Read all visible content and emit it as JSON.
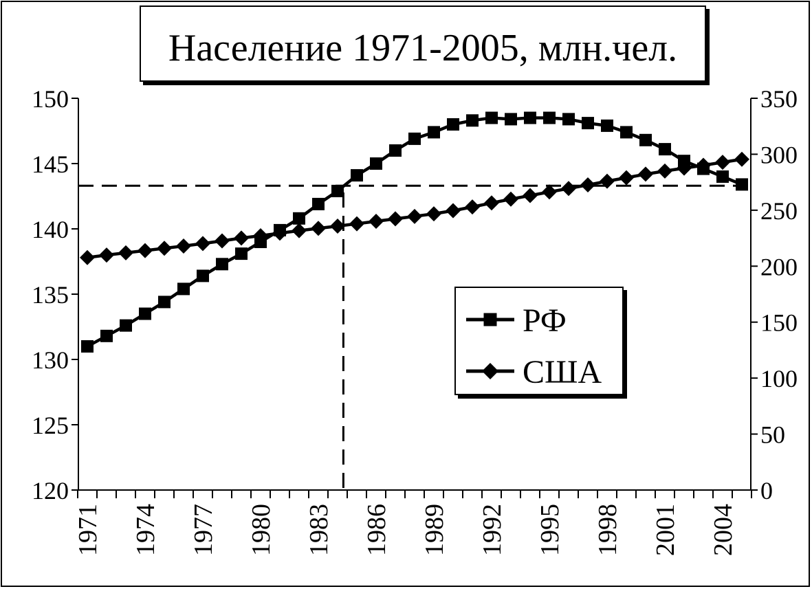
{
  "chart_data": {
    "type": "line",
    "title": "Население 1971-2005, млн.чел.",
    "x": [
      1971,
      1972,
      1973,
      1974,
      1975,
      1976,
      1977,
      1978,
      1979,
      1980,
      1981,
      1982,
      1983,
      1984,
      1985,
      1986,
      1987,
      1988,
      1989,
      1990,
      1991,
      1992,
      1993,
      1994,
      1995,
      1996,
      1997,
      1998,
      1999,
      2000,
      2001,
      2002,
      2003,
      2004,
      2005
    ],
    "x_tick_labels": [
      "1971",
      "1974",
      "1977",
      "1980",
      "1983",
      "1986",
      "1989",
      "1992",
      "1995",
      "1998",
      "2001",
      "2004"
    ],
    "left_axis": {
      "ylim": [
        120,
        150
      ],
      "ticks": [
        "120",
        "125",
        "130",
        "135",
        "140",
        "145",
        "150"
      ]
    },
    "right_axis": {
      "ylim": [
        0,
        350
      ],
      "ticks": [
        "0",
        "50",
        "100",
        "150",
        "200",
        "250",
        "300",
        "350"
      ]
    },
    "series": [
      {
        "name": "РФ",
        "axis": "left",
        "marker": "square",
        "values": [
          131.0,
          131.8,
          132.6,
          133.5,
          134.4,
          135.4,
          136.4,
          137.3,
          138.1,
          139.0,
          139.9,
          140.8,
          141.9,
          142.9,
          144.1,
          145.0,
          146.0,
          146.9,
          147.4,
          148.0,
          148.3,
          148.5,
          148.4,
          148.5,
          148.5,
          148.4,
          148.1,
          147.9,
          147.4,
          146.8,
          146.1,
          145.2,
          144.6,
          144.0,
          143.4
        ]
      },
      {
        "name": "США",
        "axis": "right",
        "marker": "diamond",
        "values": [
          207.7,
          209.9,
          211.9,
          213.9,
          216.0,
          218.0,
          220.2,
          222.6,
          225.1,
          227.2,
          229.5,
          231.7,
          233.8,
          235.8,
          237.9,
          240.1,
          242.3,
          244.5,
          246.8,
          249.6,
          252.9,
          256.5,
          259.9,
          263.1,
          266.3,
          269.4,
          272.6,
          275.9,
          279.0,
          282.2,
          285.0,
          287.6,
          290.1,
          292.8,
          295.5
        ]
      }
    ],
    "reference_lines": [
      {
        "orientation": "horizontal",
        "axis": "left",
        "value": 143.3
      },
      {
        "orientation": "vertical",
        "x": 1984.3
      }
    ],
    "legend": {
      "placement": "center-right",
      "entries": [
        "РФ",
        "США"
      ]
    },
    "grid": false
  },
  "colors": {
    "line": "#000000",
    "background": "#ffffff"
  }
}
